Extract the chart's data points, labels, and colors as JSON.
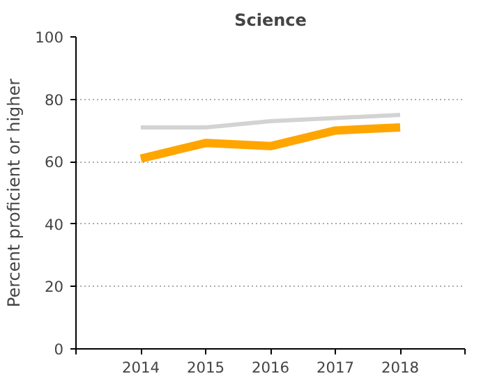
{
  "chart_data": {
    "type": "line",
    "title": "Science",
    "ylabel": "Percent proficient or higher",
    "x": [
      2014,
      2015,
      2016,
      2017,
      2018
    ],
    "series": [
      {
        "color": "#d3d3d3",
        "values": [
          71,
          71,
          73,
          74,
          75
        ]
      },
      {
        "color": "#ffa500",
        "values": [
          61,
          66,
          65,
          70,
          71
        ]
      }
    ],
    "xlim": [
      2013,
      2019
    ],
    "xticks": [
      {
        "value": 2013,
        "label": null
      },
      2014,
      2015,
      2016,
      2017,
      2018,
      {
        "value": 2019,
        "label": null
      }
    ],
    "ylim": [
      0,
      100
    ],
    "yticks": [
      0,
      20,
      40,
      60,
      80,
      100
    ],
    "grid": "y",
    "marker": "none",
    "line_style": "solid"
  }
}
